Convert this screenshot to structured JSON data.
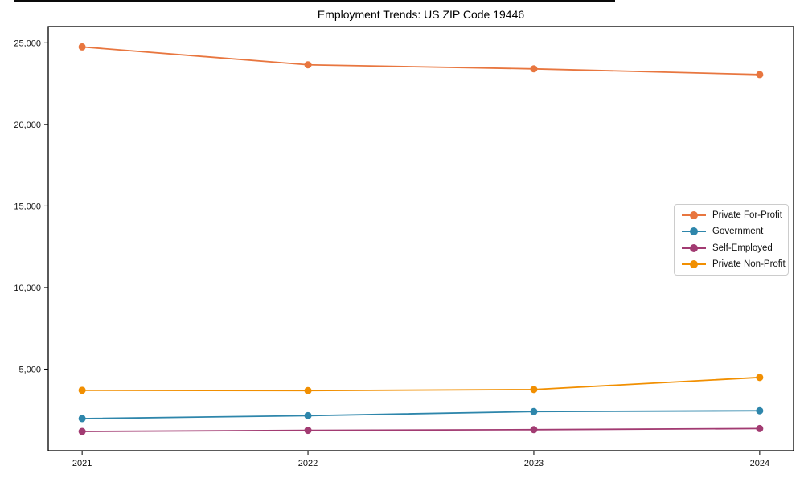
{
  "figure": {
    "title": "Employment Trends: US ZIP Code 19446"
  },
  "chart_data": {
    "type": "line",
    "title": "Employment Trends: US ZIP Code 19446",
    "xlabel": "",
    "ylabel": "",
    "x": [
      2021,
      2022,
      2023,
      2024
    ],
    "x_tick_labels": [
      "2021",
      "2022",
      "2023",
      "2024"
    ],
    "yticks": [
      5000,
      10000,
      15000,
      20000,
      25000
    ],
    "ytick_labels": [
      "5,000",
      "10,000",
      "15,000",
      "20,000",
      "25,000"
    ],
    "ylim": [
      0,
      26000
    ],
    "xlim": [
      2020.85,
      2024.15
    ],
    "grid": false,
    "legend_position": "center right",
    "series": [
      {
        "name": "Private For-Profit",
        "color": "#E8763F",
        "values": [
          24750,
          23650,
          23400,
          23050
        ]
      },
      {
        "name": "Government",
        "color": "#2E86AB",
        "values": [
          1970,
          2150,
          2400,
          2450
        ]
      },
      {
        "name": "Self-Employed",
        "color": "#A23B72",
        "values": [
          1180,
          1250,
          1290,
          1360
        ]
      },
      {
        "name": "Private Non-Profit",
        "color": "#F18F01",
        "values": [
          3700,
          3680,
          3750,
          4490
        ]
      }
    ]
  }
}
